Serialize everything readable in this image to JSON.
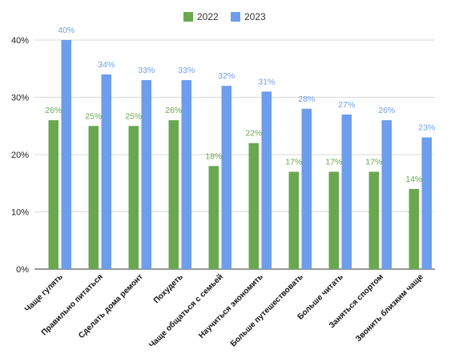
{
  "chart_data": {
    "type": "bar",
    "categories": [
      "Чаще гулять",
      "Правильно питаться",
      "Сделать дома ремонт",
      "Похудеть",
      "Чаще общаться с семьей",
      "Научиться экономить",
      "Больше путешествовать",
      "Больше читать",
      "Заняться спортом",
      "Звонить близким чаще"
    ],
    "series": [
      {
        "name": "2022",
        "color": "#6aa84f",
        "values": [
          26,
          25,
          25,
          26,
          18,
          22,
          17,
          17,
          17,
          14
        ],
        "labels": [
          "26%",
          "25%",
          "25%",
          "26%",
          "18%",
          "22%",
          "17%",
          "17%",
          "17%",
          "14%"
        ]
      },
      {
        "name": "2023",
        "color": "#6d9eeb",
        "values": [
          40,
          34,
          33,
          33,
          32,
          31,
          28,
          27,
          26,
          23
        ],
        "labels": [
          "40%",
          "34%",
          "33%",
          "33%",
          "32%",
          "31%",
          "28%",
          "27%",
          "26%",
          "23%"
        ]
      }
    ],
    "y_ticks": [
      0,
      10,
      20,
      30,
      40
    ],
    "y_tick_labels": [
      "0%",
      "10%",
      "20%",
      "30%",
      "40%"
    ],
    "ylim": [
      0,
      40
    ],
    "grid": true,
    "legend_position": "top-center",
    "title": "",
    "xlabel": "",
    "ylabel": ""
  }
}
